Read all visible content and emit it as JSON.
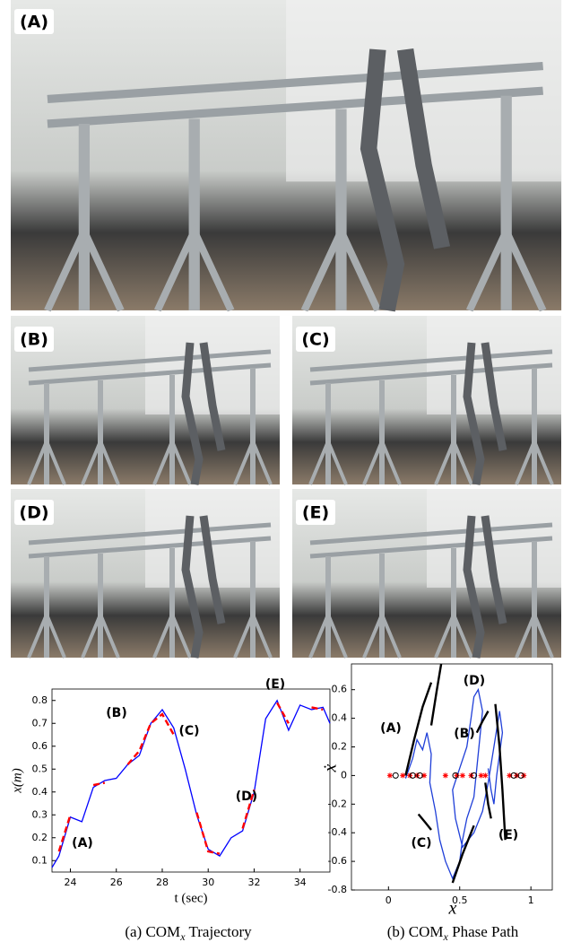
{
  "photos": [
    {
      "label": "(A)"
    },
    {
      "label": "(B)"
    },
    {
      "label": "(C)"
    },
    {
      "label": "(D)"
    },
    {
      "label": "(E)"
    }
  ],
  "chart_data": [
    {
      "type": "line",
      "xlabel": "t (sec)",
      "ylabel": "x(m)",
      "caption": {
        "prefix": "(a) COM",
        "sub": "x",
        "suffix": " Trajectory"
      },
      "annotations": [
        "(A)",
        "(B)",
        "(C)",
        "(D)",
        "(E)"
      ],
      "x": [
        23.2,
        23.5,
        24,
        24.5,
        25,
        25.5,
        26,
        26.5,
        27,
        27.5,
        28,
        28.5,
        29,
        29.5,
        30,
        30.5,
        31,
        31.5,
        32,
        32.5,
        33,
        33.5,
        34,
        34.5,
        35,
        35.3
      ],
      "series": [
        {
          "color": "#0000ff",
          "values": [
            0.07,
            0.12,
            0.29,
            0.27,
            0.42,
            0.45,
            0.46,
            0.52,
            0.56,
            0.7,
            0.76,
            0.68,
            0.5,
            0.3,
            0.15,
            0.12,
            0.2,
            0.23,
            0.4,
            0.72,
            0.8,
            0.67,
            0.78,
            0.76,
            0.77,
            0.7
          ]
        },
        {
          "color": "#ff0000",
          "dashed": true,
          "values": [
            null,
            0.14,
            0.3,
            null,
            0.43,
            0.44,
            null,
            0.52,
            0.58,
            0.7,
            0.74,
            0.65,
            null,
            0.31,
            0.14,
            0.13,
            null,
            0.24,
            0.41,
            null,
            0.79,
            0.7,
            null,
            0.77,
            0.76,
            null
          ]
        }
      ],
      "xlim": [
        23.2,
        35.3
      ],
      "ylim": [
        0.05,
        0.85
      ],
      "xticks": [
        24,
        26,
        28,
        30,
        32,
        34
      ],
      "yticks": [
        0.1,
        0.2,
        0.3,
        0.4,
        0.5,
        0.6,
        0.7,
        0.8
      ]
    },
    {
      "type": "line",
      "xlabel": "x",
      "ylabel": "ẋ",
      "caption": {
        "prefix": "(b) COM",
        "sub": "x",
        "suffix": " Phase Path"
      },
      "annotations": [
        "(A)",
        "(B)",
        "(C)",
        "(D)",
        "(E)"
      ],
      "series": [
        {
          "color": "#1f3fd8",
          "x": [
            0.12,
            0.17,
            0.2,
            0.24,
            0.27,
            0.3,
            0.29,
            0.33,
            0.36,
            0.4,
            0.45,
            0.5,
            0.52,
            0.55,
            0.6,
            0.62,
            0.64,
            0.66,
            0.63,
            0.6,
            0.58,
            0.55,
            0.5,
            0.45,
            0.47,
            0.52,
            0.6,
            0.66,
            0.7,
            0.74,
            0.78,
            0.8,
            0.76,
            0.74,
            0.72,
            0.7
          ],
          "values": [
            -0.02,
            0.12,
            0.25,
            0.18,
            0.3,
            0.15,
            -0.05,
            -0.25,
            -0.45,
            -0.6,
            -0.72,
            -0.6,
            -0.45,
            -0.3,
            -0.15,
            0.05,
            0.25,
            0.45,
            0.6,
            0.55,
            0.4,
            0.2,
            0.05,
            -0.1,
            -0.3,
            -0.5,
            -0.4,
            -0.25,
            -0.05,
            0.2,
            0.45,
            0.3,
            0.0,
            -0.2,
            -0.1,
            0.05
          ]
        },
        {
          "color": "#000000",
          "x": [
            0.12,
            0.18,
            0.24,
            0.3
          ],
          "values": [
            0.0,
            0.25,
            0.48,
            0.65
          ]
        },
        {
          "color": "#000000",
          "x": [
            0.3,
            0.34,
            0.37
          ],
          "values": [
            0.35,
            0.6,
            0.78
          ]
        },
        {
          "color": "#000000",
          "x": [
            0.21,
            0.26,
            0.3
          ],
          "values": [
            -0.27,
            -0.33,
            -0.38
          ]
        },
        {
          "color": "#000000",
          "x": [
            0.45,
            0.52,
            0.6
          ],
          "values": [
            -0.75,
            -0.55,
            -0.35
          ]
        },
        {
          "color": "#000000",
          "x": [
            0.62,
            0.66,
            0.7
          ],
          "values": [
            0.3,
            0.38,
            0.45
          ]
        },
        {
          "color": "#000000",
          "x": [
            0.75,
            0.78,
            0.8,
            0.82
          ],
          "values": [
            0.5,
            0.2,
            -0.1,
            -0.45
          ]
        },
        {
          "color": "#000000",
          "x": [
            0.68,
            0.7,
            0.72
          ],
          "values": [
            -0.05,
            -0.2,
            -0.3
          ]
        },
        {
          "color": "#ff0000",
          "marker": "asterisk",
          "x": [
            0.01,
            0.1,
            0.15,
            0.2,
            0.25,
            0.4,
            0.48,
            0.52,
            0.58,
            0.65,
            0.68,
            0.85,
            0.9,
            0.95
          ],
          "values": [
            0,
            0,
            0,
            0,
            0,
            0,
            0,
            0,
            0,
            0,
            0,
            0,
            0,
            0
          ]
        },
        {
          "color": "#000000",
          "marker": "circle",
          "x": [
            0.05,
            0.17,
            0.22,
            0.47,
            0.6,
            0.88,
            0.93
          ],
          "values": [
            0,
            0,
            0,
            0,
            0,
            0,
            0
          ]
        }
      ],
      "xlim": [
        -0.26,
        1.15
      ],
      "ylim": [
        -0.8,
        0.78
      ],
      "xticks": [
        0,
        0.5,
        1
      ],
      "yticks": [
        -0.8,
        -0.6,
        -0.4,
        -0.2,
        0,
        0.2,
        0.4,
        0.6
      ]
    }
  ]
}
